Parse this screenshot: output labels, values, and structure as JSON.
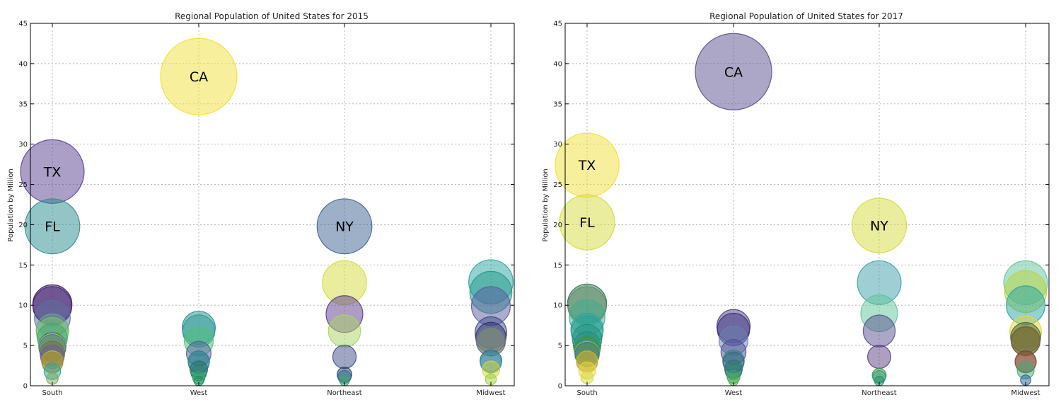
{
  "chart_data": [
    {
      "type": "scatter",
      "title": "Regional Population of United States for 2015",
      "xlabel": "",
      "ylabel": "Population by Million",
      "categories": [
        "South",
        "West",
        "Northeast",
        "Midwest"
      ],
      "ylim": [
        0,
        45
      ],
      "yticks": [
        0,
        5,
        10,
        15,
        20,
        25,
        30,
        35,
        40,
        45
      ],
      "grid": true,
      "points": [
        {
          "region": "South",
          "value": 26.6,
          "label": "TX",
          "color": "#5a3f8f"
        },
        {
          "region": "South",
          "value": 19.8,
          "label": "FL",
          "color": "#2a8c8e"
        },
        {
          "region": "South",
          "value": 10.1,
          "label": "",
          "color": "#3b1a5c"
        },
        {
          "region": "South",
          "value": 9.9,
          "label": "",
          "color": "#43207a"
        },
        {
          "region": "South",
          "value": 8.4,
          "label": "",
          "color": "#5c6fa0"
        },
        {
          "region": "South",
          "value": 6.9,
          "label": "",
          "color": "#6ba391"
        },
        {
          "region": "South",
          "value": 6.5,
          "label": "",
          "color": "#7cc46c"
        },
        {
          "region": "South",
          "value": 5.9,
          "label": "",
          "color": "#3fa66b"
        },
        {
          "region": "South",
          "value": 4.9,
          "label": "",
          "color": "#2f5c99"
        },
        {
          "region": "South",
          "value": 4.8,
          "label": "",
          "color": "#d4c93c"
        },
        {
          "region": "South",
          "value": 4.7,
          "label": "",
          "color": "#3e7f8e"
        },
        {
          "region": "South",
          "value": 4.0,
          "label": "",
          "color": "#7a6f3a"
        },
        {
          "region": "South",
          "value": 3.6,
          "label": "",
          "color": "#6a5a9e"
        },
        {
          "region": "South",
          "value": 3.0,
          "label": "",
          "color": "#c6b53c"
        },
        {
          "region": "South",
          "value": 2.9,
          "label": "",
          "color": "#9b8a2c"
        },
        {
          "region": "South",
          "value": 1.8,
          "label": "",
          "color": "#2aa3a3"
        },
        {
          "region": "South",
          "value": 0.9,
          "label": "",
          "color": "#7aa85a"
        },
        {
          "region": "West",
          "value": 38.4,
          "label": "CA",
          "color": "#f2df3a"
        },
        {
          "region": "West",
          "value": 7.2,
          "label": "",
          "color": "#2a8c8e"
        },
        {
          "region": "West",
          "value": 6.8,
          "label": "",
          "color": "#2a9d94"
        },
        {
          "region": "West",
          "value": 5.5,
          "label": "",
          "color": "#4fc07a"
        },
        {
          "region": "West",
          "value": 4.0,
          "label": "",
          "color": "#4f5e9a"
        },
        {
          "region": "West",
          "value": 3.0,
          "label": "",
          "color": "#3a6f9a"
        },
        {
          "region": "West",
          "value": 2.8,
          "label": "",
          "color": "#2e8f8c"
        },
        {
          "region": "West",
          "value": 2.0,
          "label": "",
          "color": "#1f6f70"
        },
        {
          "region": "West",
          "value": 1.6,
          "label": "",
          "color": "#2f7f6a"
        },
        {
          "region": "West",
          "value": 1.0,
          "label": "",
          "color": "#2aa36a"
        },
        {
          "region": "West",
          "value": 0.6,
          "label": "",
          "color": "#1f8f5a"
        },
        {
          "region": "Northeast",
          "value": 19.8,
          "label": "NY",
          "color": "#3d5f91"
        },
        {
          "region": "Northeast",
          "value": 12.8,
          "label": "",
          "color": "#d4dc3c"
        },
        {
          "region": "Northeast",
          "value": 8.9,
          "label": "",
          "color": "#5b3a8e"
        },
        {
          "region": "Northeast",
          "value": 6.8,
          "label": "",
          "color": "#a9d460"
        },
        {
          "region": "Northeast",
          "value": 3.6,
          "label": "",
          "color": "#3f4d8a"
        },
        {
          "region": "Northeast",
          "value": 1.4,
          "label": "",
          "color": "#1f3f6a"
        },
        {
          "region": "Northeast",
          "value": 1.1,
          "label": "",
          "color": "#2a6f8a"
        },
        {
          "region": "Northeast",
          "value": 0.6,
          "label": "",
          "color": "#3fa66b"
        },
        {
          "region": "Midwest",
          "value": 12.9,
          "label": "",
          "color": "#2aa3a3"
        },
        {
          "region": "Midwest",
          "value": 11.6,
          "label": "",
          "color": "#1f9a8a"
        },
        {
          "region": "Midwest",
          "value": 9.9,
          "label": "",
          "color": "#5a5a9e"
        },
        {
          "region": "Midwest",
          "value": 6.6,
          "label": "",
          "color": "#3f4d8a"
        },
        {
          "region": "Midwest",
          "value": 6.0,
          "label": "",
          "color": "#2f2f6f"
        },
        {
          "region": "Midwest",
          "value": 5.5,
          "label": "",
          "color": "#d4dc3c"
        },
        {
          "region": "Midwest",
          "value": 5.5,
          "label": "",
          "color": "#4f5f9a"
        },
        {
          "region": "Midwest",
          "value": 3.1,
          "label": "",
          "color": "#2a6f9a"
        },
        {
          "region": "Midwest",
          "value": 2.9,
          "label": "",
          "color": "#3f8f9a"
        },
        {
          "region": "Midwest",
          "value": 2.0,
          "label": "",
          "color": "#d4dc3c"
        },
        {
          "region": "Midwest",
          "value": 0.8,
          "label": "",
          "color": "#9fcf3c"
        }
      ]
    },
    {
      "type": "scatter",
      "title": "Regional Population of United States for 2017",
      "xlabel": "",
      "ylabel": "Population by Million",
      "categories": [
        "South",
        "West",
        "Northeast",
        "Midwest"
      ],
      "ylim": [
        0,
        45
      ],
      "yticks": [
        0,
        5,
        10,
        15,
        20,
        25,
        30,
        35,
        40,
        45
      ],
      "grid": true,
      "points": [
        {
          "region": "South",
          "value": 27.4,
          "label": "TX",
          "color": "#f2df3a"
        },
        {
          "region": "South",
          "value": 20.3,
          "label": "FL",
          "color": "#d4dc3c"
        },
        {
          "region": "South",
          "value": 10.2,
          "label": "",
          "color": "#2f6f4a"
        },
        {
          "region": "South",
          "value": 9.9,
          "label": "",
          "color": "#5f8f6a"
        },
        {
          "region": "South",
          "value": 8.5,
          "label": "",
          "color": "#3fae8e"
        },
        {
          "region": "South",
          "value": 7.0,
          "label": "",
          "color": "#2aa3a3"
        },
        {
          "region": "South",
          "value": 6.7,
          "label": "",
          "color": "#2f9f8f"
        },
        {
          "region": "South",
          "value": 5.8,
          "label": "",
          "color": "#1f8f7a"
        },
        {
          "region": "South",
          "value": 5.0,
          "label": "",
          "color": "#2a7f9a"
        },
        {
          "region": "South",
          "value": 4.9,
          "label": "",
          "color": "#2f9f6a"
        },
        {
          "region": "South",
          "value": 4.5,
          "label": "",
          "color": "#3f8f4a"
        },
        {
          "region": "South",
          "value": 4.0,
          "label": "",
          "color": "#a9c43c"
        },
        {
          "region": "South",
          "value": 3.9,
          "label": "",
          "color": "#2f6f8a"
        },
        {
          "region": "South",
          "value": 3.0,
          "label": "",
          "color": "#9f8f2a"
        },
        {
          "region": "South",
          "value": 3.0,
          "label": "",
          "color": "#c6b53c"
        },
        {
          "region": "South",
          "value": 1.9,
          "label": "",
          "color": "#e6d43c"
        },
        {
          "region": "South",
          "value": 1.0,
          "label": "",
          "color": "#d4dc3c"
        },
        {
          "region": "West",
          "value": 39.0,
          "label": "CA",
          "color": "#5a4f8f"
        },
        {
          "region": "West",
          "value": 7.4,
          "label": "",
          "color": "#4a3f7f"
        },
        {
          "region": "West",
          "value": 7.0,
          "label": "",
          "color": "#3a2f7f"
        },
        {
          "region": "West",
          "value": 5.6,
          "label": "",
          "color": "#6a7fb0"
        },
        {
          "region": "West",
          "value": 4.2,
          "label": "",
          "color": "#4f4f9a"
        },
        {
          "region": "West",
          "value": 3.1,
          "label": "",
          "color": "#2a8f7a"
        },
        {
          "region": "West",
          "value": 2.9,
          "label": "",
          "color": "#3f5f8a"
        },
        {
          "region": "West",
          "value": 2.1,
          "label": "",
          "color": "#2a6f7a"
        },
        {
          "region": "West",
          "value": 1.8,
          "label": "",
          "color": "#2f7f6a"
        },
        {
          "region": "West",
          "value": 1.1,
          "label": "",
          "color": "#3f9f6a"
        },
        {
          "region": "West",
          "value": 0.6,
          "label": "",
          "color": "#4fae4a"
        },
        {
          "region": "Northeast",
          "value": 19.9,
          "label": "NY",
          "color": "#d4dc3c"
        },
        {
          "region": "Northeast",
          "value": 12.8,
          "label": "",
          "color": "#3f9faa"
        },
        {
          "region": "Northeast",
          "value": 9.0,
          "label": "",
          "color": "#5fc49a"
        },
        {
          "region": "Northeast",
          "value": 6.8,
          "label": "",
          "color": "#5a4f8f"
        },
        {
          "region": "Northeast",
          "value": 3.6,
          "label": "",
          "color": "#5a3f7f"
        },
        {
          "region": "Northeast",
          "value": 1.3,
          "label": "",
          "color": "#3f8f4a"
        },
        {
          "region": "Northeast",
          "value": 1.1,
          "label": "",
          "color": "#2aa36a"
        },
        {
          "region": "Northeast",
          "value": 0.6,
          "label": "",
          "color": "#2f8f7a"
        },
        {
          "region": "Midwest",
          "value": 12.8,
          "label": "",
          "color": "#5fc49a"
        },
        {
          "region": "Midwest",
          "value": 11.7,
          "label": "",
          "color": "#b9d43c"
        },
        {
          "region": "Midwest",
          "value": 10.0,
          "label": "",
          "color": "#2aa3a3"
        },
        {
          "region": "Midwest",
          "value": 6.7,
          "label": "",
          "color": "#e6d43c"
        },
        {
          "region": "Midwest",
          "value": 6.0,
          "label": "",
          "color": "#3f5f3a"
        },
        {
          "region": "Midwest",
          "value": 5.6,
          "label": "",
          "color": "#6a7f2a"
        },
        {
          "region": "Midwest",
          "value": 5.5,
          "label": "",
          "color": "#7a5f3a"
        },
        {
          "region": "Midwest",
          "value": 3.0,
          "label": "",
          "color": "#7a3f3a"
        },
        {
          "region": "Midwest",
          "value": 2.9,
          "label": "",
          "color": "#8a5f3a"
        },
        {
          "region": "Midwest",
          "value": 1.9,
          "label": "",
          "color": "#3faa7a"
        },
        {
          "region": "Midwest",
          "value": 0.7,
          "label": "",
          "color": "#2a5f9a"
        }
      ]
    }
  ]
}
